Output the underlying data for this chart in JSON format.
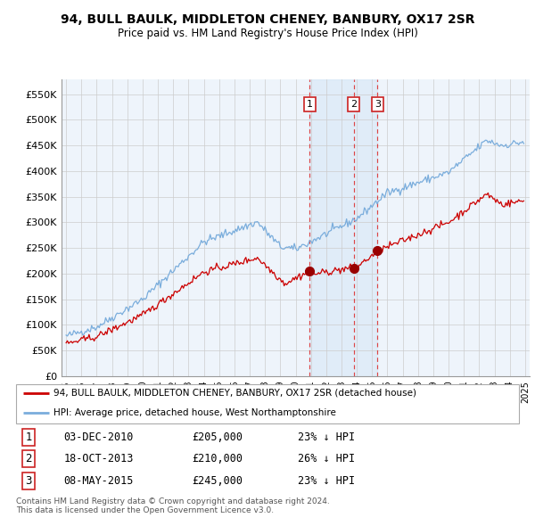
{
  "title": "94, BULL BAULK, MIDDLETON CHENEY, BANBURY, OX17 2SR",
  "subtitle": "Price paid vs. HM Land Registry's House Price Index (HPI)",
  "background_color": "#ffffff",
  "plot_bg_color": "#eef4fb",
  "grid_color": "#cccccc",
  "hpi_color": "#7aaddc",
  "price_color": "#cc0000",
  "sale_marker_color": "#990000",
  "dashed_line_color": "#dd3333",
  "shade_color": "#ddeeff",
  "ylim": [
    0,
    580000
  ],
  "yticks": [
    0,
    50000,
    100000,
    150000,
    200000,
    250000,
    300000,
    350000,
    400000,
    450000,
    500000,
    550000
  ],
  "ytick_labels": [
    "£0",
    "£50K",
    "£100K",
    "£150K",
    "£200K",
    "£250K",
    "£300K",
    "£350K",
    "£400K",
    "£450K",
    "£500K",
    "£550K"
  ],
  "sales": [
    {
      "price": 205000,
      "label": "1",
      "x_year": 2010.917
    },
    {
      "price": 210000,
      "label": "2",
      "x_year": 2013.792
    },
    {
      "price": 245000,
      "label": "3",
      "x_year": 2015.354
    }
  ],
  "table_rows": [
    {
      "num": "1",
      "date": "03-DEC-2010",
      "price": "£205,000",
      "pct": "23% ↓ HPI"
    },
    {
      "num": "2",
      "date": "18-OCT-2013",
      "price": "£210,000",
      "pct": "26% ↓ HPI"
    },
    {
      "num": "3",
      "date": "08-MAY-2015",
      "price": "£245,000",
      "pct": "23% ↓ HPI"
    }
  ],
  "legend_entries": [
    "94, BULL BAULK, MIDDLETON CHENEY, BANBURY, OX17 2SR (detached house)",
    "HPI: Average price, detached house, West Northamptonshire"
  ],
  "footnote": "Contains HM Land Registry data © Crown copyright and database right 2024.\nThis data is licensed under the Open Government Licence v3.0.",
  "xlim_start": 1994.7,
  "xlim_end": 2025.3
}
